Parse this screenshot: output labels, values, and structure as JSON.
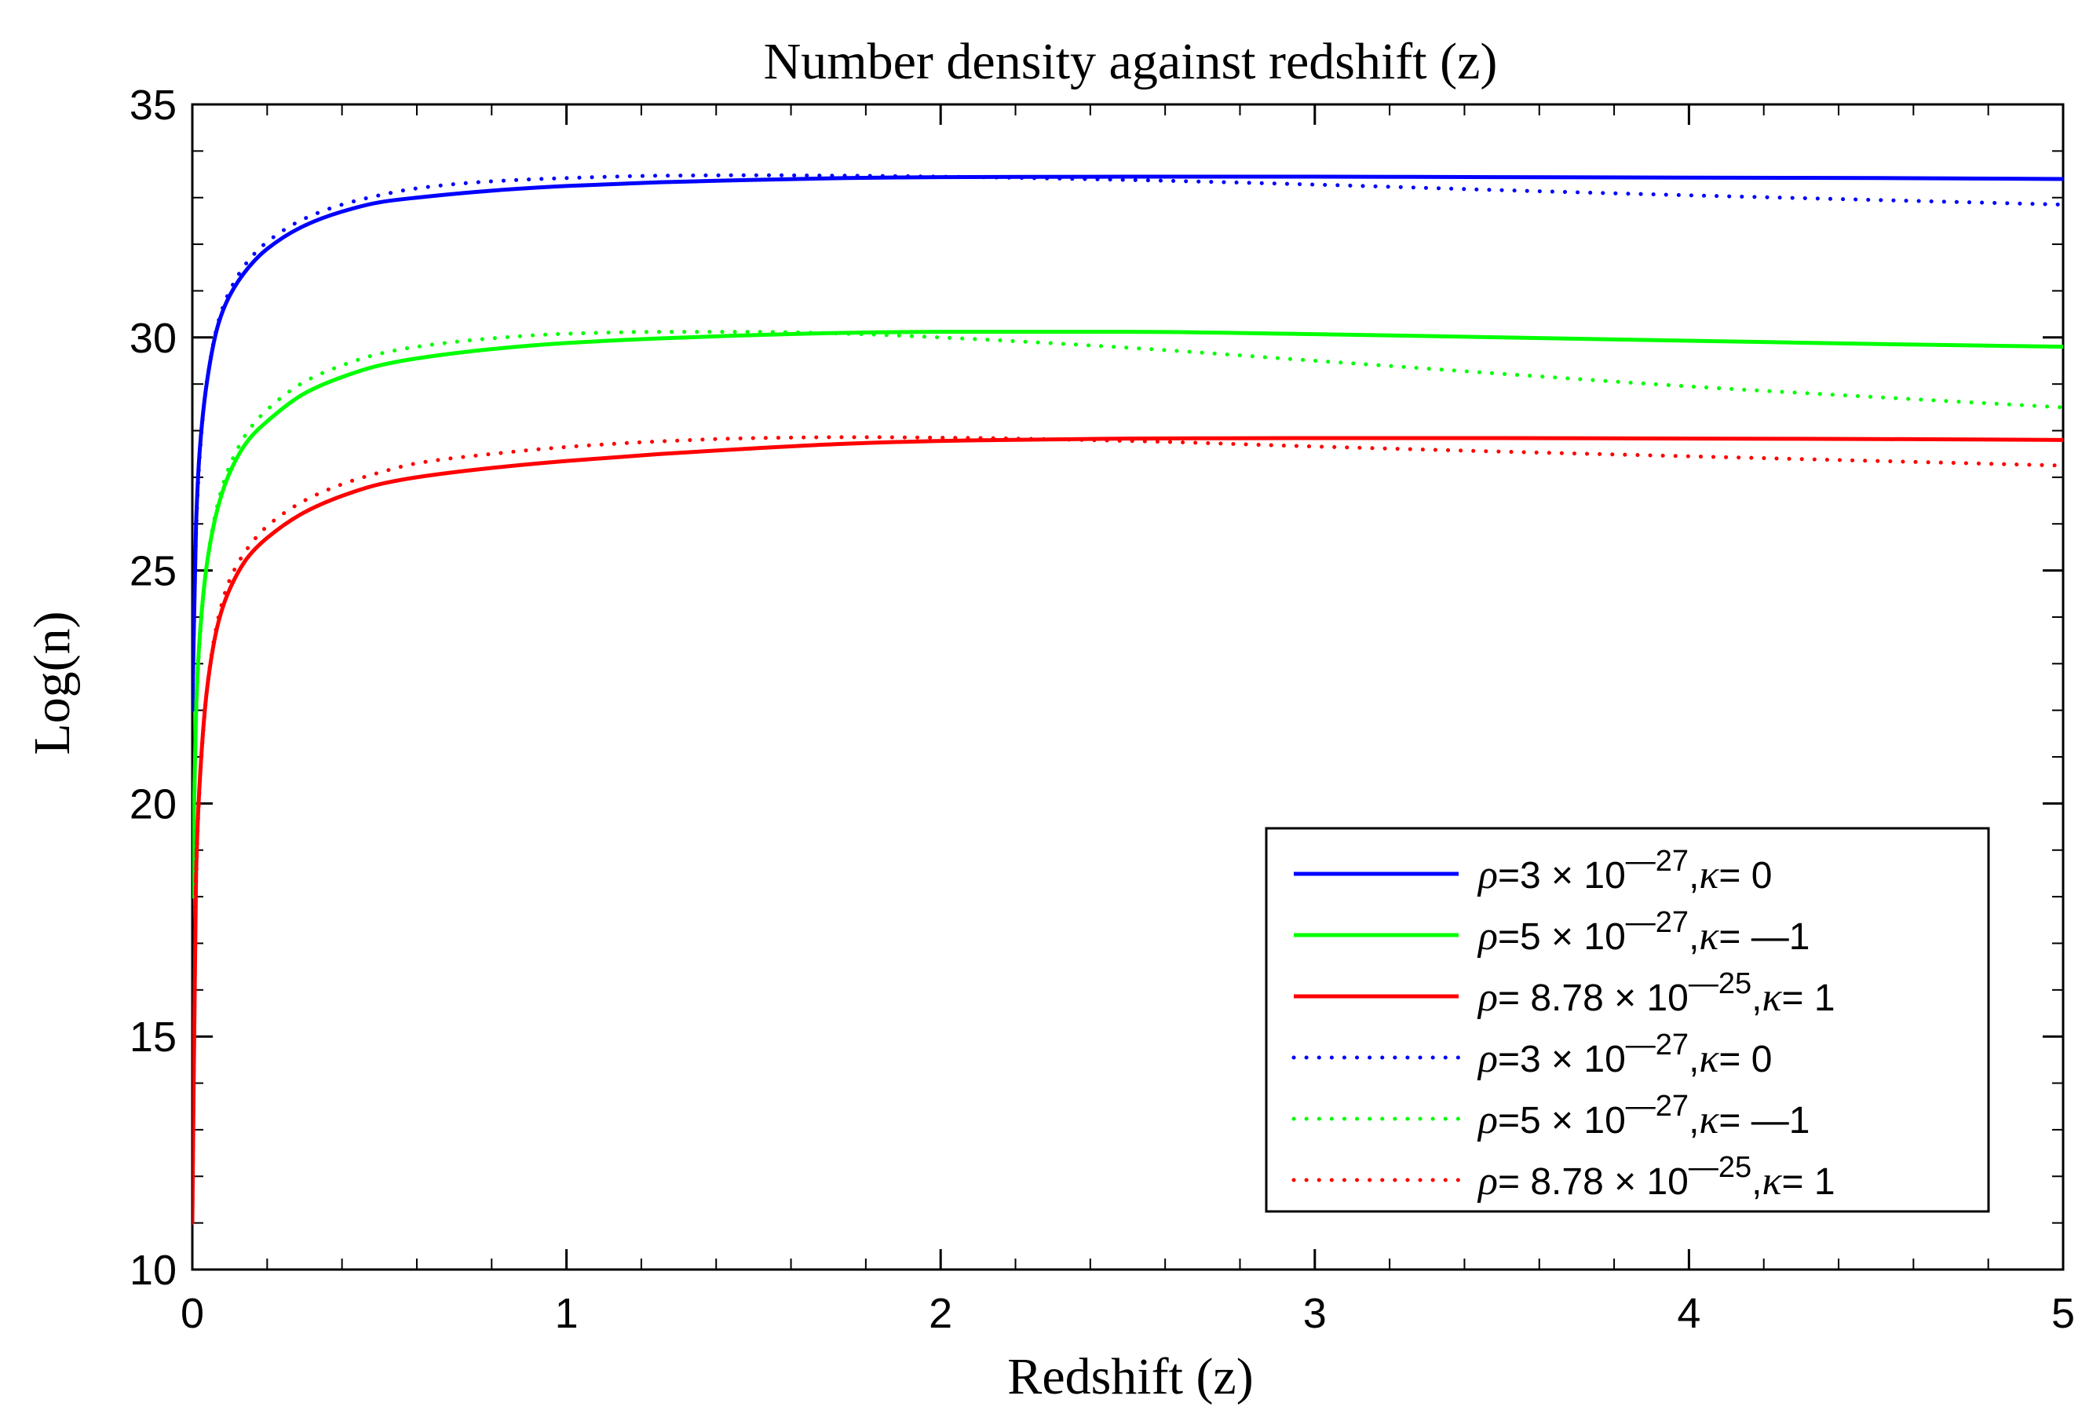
{
  "chart_data": {
    "type": "line",
    "title": "Number density against redshift (z)",
    "xlabel": "Redshift (z)",
    "ylabel": "Log(n)",
    "xlim": [
      0,
      5
    ],
    "ylim": [
      10,
      35
    ],
    "xticks": [
      "0",
      "1",
      "2",
      "3",
      "4",
      "5"
    ],
    "yticks": [
      "10",
      "15",
      "20",
      "25",
      "30",
      "35"
    ],
    "grid": false,
    "legend_position": "bottom-right",
    "x": [
      0,
      0.01,
      0.02,
      0.04,
      0.07,
      0.1,
      0.15,
      0.2,
      0.3,
      0.4,
      0.5,
      0.6,
      0.8,
      1.0,
      1.25,
      1.5,
      1.75,
      2.0,
      2.5,
      3.0,
      3.5,
      4.0,
      4.5,
      5.0
    ],
    "series": [
      {
        "name": "ρ=3 × 10⁻²⁷, κ= 0",
        "color": "#0000ff",
        "style": "solid",
        "legend": {
          "sym1": "ρ",
          "mid": "=3 × 10",
          "exp": "—27",
          "sep": ",",
          "sym2": "κ",
          "tail": "= 0"
        },
        "values": [
          22.0,
          26.0,
          27.6,
          29.1,
          30.3,
          30.9,
          31.5,
          31.9,
          32.4,
          32.7,
          32.9,
          33.0,
          33.15,
          33.25,
          33.33,
          33.38,
          33.42,
          33.44,
          33.45,
          33.45,
          33.44,
          33.43,
          33.42,
          33.4
        ]
      },
      {
        "name": "ρ=5 × 10⁻²⁷, κ= —1",
        "color": "#00ff00",
        "style": "solid",
        "legend": {
          "sym1": "ρ",
          "mid": "=5 × 10",
          "exp": "—27",
          "sep": ",",
          "sym2": "κ",
          "tail": "= —1"
        },
        "values": [
          18.0,
          22.0,
          23.6,
          25.2,
          26.4,
          27.1,
          27.8,
          28.2,
          28.8,
          29.15,
          29.4,
          29.55,
          29.75,
          29.88,
          29.98,
          30.05,
          30.1,
          30.12,
          30.12,
          30.07,
          30.0,
          29.93,
          29.86,
          29.8
        ]
      },
      {
        "name": "ρ= 8.78 × 10⁻²⁵, κ= 1",
        "color": "#ff0000",
        "style": "solid",
        "legend": {
          "sym1": "ρ",
          "mid": "= 8.78 × 10",
          "exp": "—25",
          "sep": ",",
          "sym2": "κ",
          "tail": "= 1"
        },
        "values": [
          11.0,
          18.5,
          20.5,
          22.5,
          23.9,
          24.6,
          25.3,
          25.7,
          26.25,
          26.6,
          26.85,
          27.0,
          27.2,
          27.35,
          27.5,
          27.62,
          27.72,
          27.78,
          27.83,
          27.84,
          27.84,
          27.83,
          27.82,
          27.8
        ]
      },
      {
        "name": "ρ=3 × 10⁻²⁷, κ= 0 (dotted)",
        "color": "#0000ff",
        "style": "dotted",
        "legend": {
          "sym1": "ρ",
          "mid": "=3 × 10",
          "exp": "—27",
          "sep": ",",
          "sym2": "κ",
          "tail": "= 0"
        },
        "values": [
          22.0,
          25.8,
          27.5,
          29.1,
          30.35,
          31.0,
          31.65,
          32.05,
          32.55,
          32.85,
          33.05,
          33.2,
          33.35,
          33.42,
          33.47,
          33.48,
          33.47,
          33.45,
          33.38,
          33.28,
          33.16,
          33.05,
          32.95,
          32.85
        ]
      },
      {
        "name": "ρ=5 × 10⁻²⁷, κ= —1 (dotted)",
        "color": "#00ff00",
        "style": "dotted",
        "legend": {
          "sym1": "ρ",
          "mid": "=5 × 10",
          "exp": "—27",
          "sep": ",",
          "sym2": "κ",
          "tail": "= —1"
        },
        "values": [
          18.0,
          21.8,
          23.5,
          25.2,
          26.5,
          27.25,
          28.0,
          28.45,
          29.05,
          29.4,
          29.65,
          29.8,
          29.98,
          30.08,
          30.12,
          30.12,
          30.08,
          30.0,
          29.78,
          29.5,
          29.22,
          28.95,
          28.72,
          28.5
        ]
      },
      {
        "name": "ρ= 8.78 × 10⁻²⁵, κ= 1 (dotted)",
        "color": "#ff0000",
        "style": "dotted",
        "legend": {
          "sym1": "ρ",
          "mid": "= 8.78 × 10",
          "exp": "—25",
          "sep": ",",
          "sym2": "κ",
          "tail": "= 1"
        },
        "values": [
          11.0,
          18.3,
          20.4,
          22.5,
          24.0,
          24.8,
          25.5,
          25.95,
          26.5,
          26.85,
          27.1,
          27.3,
          27.5,
          27.65,
          27.77,
          27.84,
          27.86,
          27.85,
          27.78,
          27.66,
          27.55,
          27.45,
          27.35,
          27.25
        ]
      }
    ]
  }
}
